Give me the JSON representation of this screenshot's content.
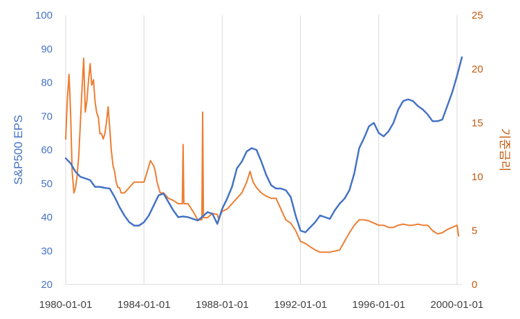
{
  "chart_data": {
    "type": "line",
    "title": "",
    "ylabel_left": "S&P500 EPS",
    "ylabel_right": "기준금리",
    "xlabel": "",
    "x_ticks": [
      "1980-01-01",
      "1984-01-01",
      "1988-01-01",
      "1992-01-01",
      "1996-01-01",
      "2000-01-01"
    ],
    "y_left_ticks": [
      20,
      30,
      40,
      50,
      60,
      70,
      80,
      90,
      100
    ],
    "y_right_ticks": [
      0,
      5,
      10,
      15,
      20,
      25
    ],
    "ylim_left": [
      20,
      100
    ],
    "ylim_right": [
      0,
      25
    ],
    "xlim": [
      1980.0,
      2000.25
    ],
    "grid": "vertical",
    "legend": "none",
    "colors": {
      "eps": "#4472C4",
      "rate": "#ED7D31",
      "right_axis_text": "#C55A11",
      "grid": "#D9D9D9"
    },
    "series": [
      {
        "axis": "left",
        "color": "#4472C4",
        "x": [
          1980.0,
          1980.25,
          1980.5,
          1980.75,
          1981.0,
          1981.25,
          1981.5,
          1981.75,
          1982.0,
          1982.25,
          1982.5,
          1982.75,
          1983.0,
          1983.25,
          1983.5,
          1983.75,
          1984.0,
          1984.25,
          1984.5,
          1984.75,
          1985.0,
          1985.25,
          1985.5,
          1985.75,
          1986.0,
          1986.25,
          1986.5,
          1986.75,
          1987.0,
          1987.25,
          1987.5,
          1987.75,
          1988.0,
          1988.25,
          1988.5,
          1988.75,
          1989.0,
          1989.25,
          1989.5,
          1989.75,
          1990.0,
          1990.25,
          1990.5,
          1990.75,
          1991.0,
          1991.25,
          1991.5,
          1991.75,
          1992.0,
          1992.25,
          1992.5,
          1992.75,
          1993.0,
          1993.25,
          1993.5,
          1993.75,
          1994.0,
          1994.25,
          1994.5,
          1994.75,
          1995.0,
          1995.25,
          1995.5,
          1995.75,
          1996.0,
          1996.25,
          1996.5,
          1996.75,
          1997.0,
          1997.25,
          1997.5,
          1997.75,
          1998.0,
          1998.25,
          1998.5,
          1998.75,
          1999.0,
          1999.25,
          1999.5,
          1999.75,
          2000.0,
          2000.25
        ],
        "values": [
          57.5,
          56,
          53.5,
          52,
          51.5,
          51,
          49,
          49,
          48.7,
          48.5,
          46,
          43,
          40.5,
          38.5,
          37.5,
          37.5,
          38.5,
          40.5,
          43.5,
          46.5,
          47,
          44.5,
          42,
          40,
          40.2,
          40,
          39.5,
          39,
          40.2,
          41.5,
          41,
          38,
          42.5,
          45.5,
          49,
          54.5,
          56.5,
          59.5,
          60.5,
          60,
          56.5,
          52.5,
          49.5,
          48.5,
          48.5,
          48,
          46,
          40.5,
          36,
          35.5,
          37,
          38.5,
          40.5,
          40,
          39.5,
          42,
          44,
          45.5,
          48,
          53,
          60.5,
          63.5,
          67,
          68,
          65,
          64,
          65.5,
          68,
          72,
          74.5,
          75,
          74.5,
          73,
          72,
          70.5,
          68.5,
          68.5,
          69,
          73,
          77,
          82,
          87.5
        ]
      },
      {
        "axis": "right",
        "color": "#ED7D31",
        "x": [
          1980.0,
          1980.08,
          1980.17,
          1980.25,
          1980.33,
          1980.42,
          1980.5,
          1980.58,
          1980.67,
          1980.75,
          1980.83,
          1980.92,
          1981.0,
          1981.08,
          1981.17,
          1981.25,
          1981.33,
          1981.42,
          1981.5,
          1981.58,
          1981.67,
          1981.75,
          1981.83,
          1981.92,
          1982.0,
          1982.08,
          1982.17,
          1982.25,
          1982.33,
          1982.42,
          1982.5,
          1982.58,
          1982.67,
          1982.75,
          1982.83,
          1982.92,
          1983.0,
          1983.25,
          1983.5,
          1983.75,
          1984.0,
          1984.17,
          1984.33,
          1984.5,
          1984.58,
          1984.67,
          1984.75,
          1984.83,
          1985.0,
          1985.25,
          1985.5,
          1985.75,
          1985.96,
          1986.0,
          1986.04,
          1986.25,
          1986.5,
          1986.75,
          1986.96,
          1987.0,
          1987.04,
          1987.25,
          1987.5,
          1987.75,
          1987.83,
          1987.92,
          1988.0,
          1988.25,
          1988.5,
          1988.75,
          1989.0,
          1989.25,
          1989.42,
          1989.58,
          1989.75,
          1990.0,
          1990.25,
          1990.5,
          1990.75,
          1991.0,
          1991.25,
          1991.5,
          1991.75,
          1992.0,
          1992.25,
          1992.5,
          1992.75,
          1993.0,
          1993.5,
          1994.0,
          1994.25,
          1994.5,
          1994.75,
          1995.0,
          1995.25,
          1995.5,
          1995.75,
          1996.0,
          1996.25,
          1996.5,
          1996.75,
          1997.0,
          1997.25,
          1997.5,
          1997.75,
          1998.0,
          1998.25,
          1998.5,
          1998.75,
          1999.0,
          1999.25,
          1999.5,
          1999.75,
          2000.0,
          2000.08
        ],
        "values": [
          13.5,
          17,
          19.5,
          16,
          10.5,
          8.5,
          9,
          10,
          12,
          15,
          18,
          21,
          16,
          17,
          19,
          20.5,
          18.5,
          19,
          17,
          16,
          15.5,
          14,
          14,
          13.5,
          14,
          15,
          16.5,
          14.5,
          12.5,
          11,
          10.5,
          9.5,
          9,
          9,
          8.5,
          8.5,
          8.5,
          9,
          9.5,
          9.5,
          9.5,
          10.5,
          11.5,
          11,
          10.5,
          9.5,
          9,
          8.5,
          8.5,
          8,
          7.8,
          7.5,
          7.5,
          13,
          7.5,
          7.5,
          6.8,
          6,
          6,
          16,
          6.2,
          6.2,
          6.6,
          6.5,
          6,
          6.5,
          6.8,
          7,
          7.5,
          8,
          8.5,
          9.5,
          10.5,
          9.5,
          9,
          8.5,
          8.2,
          8,
          8,
          7,
          6,
          5.7,
          5,
          4,
          3.8,
          3.5,
          3.2,
          3,
          3,
          3.2,
          4,
          4.8,
          5.5,
          6,
          6,
          5.9,
          5.7,
          5.5,
          5.5,
          5.3,
          5.3,
          5.5,
          5.6,
          5.5,
          5.5,
          5.6,
          5.5,
          5.5,
          5,
          4.7,
          4.8,
          5.1,
          5.3,
          5.5,
          4.5
        ]
      }
    ]
  }
}
